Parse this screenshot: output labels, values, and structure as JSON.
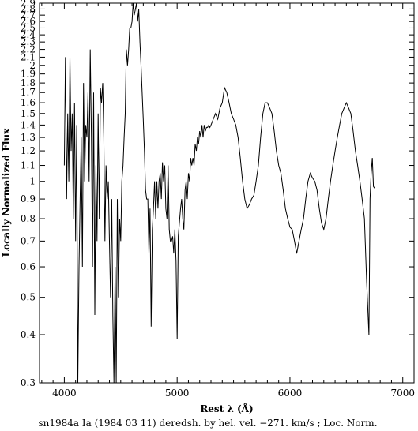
{
  "chart_data": {
    "type": "line",
    "xlabel": "Rest λ (Å)",
    "ylabel": "Locally Normalized Flux",
    "caption": "sn1984a Ia (1984 03 11) deredsh. by hel. vel.  −271. km/s ;  Loc. Norm.",
    "xlim": [
      3780,
      7100
    ],
    "ylim": [
      0.3,
      2.9
    ],
    "yscale": "log",
    "xticks": [
      4000,
      5000,
      6000,
      7000
    ],
    "yticks": [
      0.3,
      0.4,
      0.5,
      0.6,
      0.7,
      0.8,
      0.9,
      1,
      1.1,
      1.2,
      1.3,
      1.4,
      1.5,
      1.6,
      1.7,
      1.8,
      1.9,
      2,
      2.1,
      2.2,
      2.3,
      2.4,
      2.5,
      2.6,
      2.7,
      2.8,
      2.9
    ],
    "grid": false,
    "line_color": "#000000",
    "series": [
      {
        "x": [
          4000,
          4010,
          4020,
          4030,
          4040,
          4050,
          4060,
          4070,
          4080,
          4090,
          4100,
          4110,
          4120,
          4130,
          4140,
          4150,
          4160,
          4170,
          4180,
          4190,
          4200,
          4210,
          4220,
          4230,
          4240,
          4250,
          4260,
          4270,
          4280,
          4290,
          4300,
          4310,
          4320,
          4330,
          4340,
          4350,
          4360,
          4370,
          4380,
          4390,
          4400,
          4410,
          4420,
          4430,
          4440,
          4450,
          4460,
          4470,
          4480,
          4490,
          4500,
          4510,
          4520,
          4530,
          4540,
          4550,
          4560,
          4570,
          4580,
          4590,
          4600,
          4610,
          4620,
          4630,
          4640,
          4650,
          4660,
          4670,
          4680,
          4690,
          4700,
          4710,
          4720,
          4730,
          4740,
          4750,
          4760,
          4770,
          4780,
          4790,
          4800,
          4810,
          4820,
          4830,
          4840,
          4850,
          4860,
          4870,
          4880,
          4890,
          4900,
          4910,
          4920,
          4930,
          4940,
          4950,
          4960,
          4970,
          4980,
          4990,
          5000,
          5010,
          5020,
          5030,
          5040,
          5050,
          5060,
          5070,
          5080,
          5090,
          5100,
          5110,
          5120,
          5130,
          5140,
          5150,
          5160,
          5170,
          5180,
          5190,
          5200,
          5210,
          5220,
          5230,
          5240,
          5250,
          5260,
          5270,
          5280,
          5290,
          5300,
          5320,
          5340,
          5360,
          5380,
          5400,
          5420,
          5440,
          5460,
          5480,
          5500,
          5520,
          5540,
          5560,
          5580,
          5600,
          5620,
          5640,
          5660,
          5680,
          5700,
          5720,
          5740,
          5760,
          5780,
          5800,
          5820,
          5840,
          5860,
          5880,
          5900,
          5920,
          5940,
          5960,
          5980,
          6000,
          6020,
          6040,
          6060,
          6080,
          6100,
          6120,
          6140,
          6160,
          6180,
          6200,
          6220,
          6240,
          6260,
          6280,
          6300,
          6320,
          6340,
          6360,
          6380,
          6400,
          6420,
          6440,
          6460,
          6480,
          6500,
          6520,
          6540,
          6560,
          6580,
          6600,
          6620,
          6640,
          6660,
          6680,
          6700,
          6710,
          6720,
          6730,
          6740,
          6750
        ],
        "y": [
          1.1,
          2.1,
          0.9,
          1.5,
          1.0,
          2.1,
          1.2,
          1.5,
          0.8,
          1.6,
          0.7,
          1.4,
          0.3,
          0.6,
          0.9,
          1.3,
          0.6,
          1.8,
          1.0,
          1.4,
          1.3,
          1.7,
          1.0,
          2.2,
          1.3,
          0.6,
          1.7,
          0.45,
          1.1,
          0.7,
          1.5,
          0.8,
          1.75,
          1.6,
          1.8,
          1.3,
          0.7,
          1.1,
          0.9,
          1.0,
          0.7,
          0.5,
          0.9,
          0.45,
          0.3,
          0.6,
          0.3,
          0.9,
          0.5,
          0.8,
          0.7,
          1.0,
          1.1,
          1.3,
          1.5,
          2.2,
          2.0,
          2.2,
          2.5,
          2.5,
          2.6,
          2.9,
          2.7,
          2.8,
          2.9,
          2.6,
          2.8,
          2.3,
          2.0,
          1.7,
          1.45,
          1.2,
          0.95,
          0.9,
          0.9,
          0.65,
          0.85,
          0.42,
          0.75,
          0.85,
          1.0,
          0.8,
          1.0,
          0.85,
          1.0,
          1.05,
          0.9,
          1.12,
          1.0,
          1.1,
          0.85,
          0.8,
          1.1,
          0.75,
          0.7,
          0.7,
          0.72,
          0.65,
          0.75,
          0.62,
          0.39,
          0.72,
          0.78,
          0.85,
          0.9,
          0.8,
          0.75,
          0.95,
          1.0,
          0.9,
          1.05,
          1.0,
          1.15,
          1.1,
          1.15,
          1.1,
          1.25,
          1.2,
          1.3,
          1.25,
          1.35,
          1.3,
          1.4,
          1.3,
          1.4,
          1.35,
          1.38,
          1.38,
          1.4,
          1.38,
          1.4,
          1.45,
          1.5,
          1.45,
          1.55,
          1.6,
          1.75,
          1.7,
          1.6,
          1.5,
          1.45,
          1.4,
          1.3,
          1.15,
          1.0,
          0.9,
          0.85,
          0.87,
          0.9,
          0.92,
          1.0,
          1.1,
          1.3,
          1.5,
          1.6,
          1.6,
          1.55,
          1.5,
          1.35,
          1.2,
          1.1,
          1.05,
          0.95,
          0.85,
          0.8,
          0.76,
          0.75,
          0.7,
          0.65,
          0.7,
          0.75,
          0.8,
          0.9,
          1.0,
          1.05,
          1.02,
          1.0,
          0.95,
          0.85,
          0.78,
          0.75,
          0.8,
          0.9,
          1.0,
          1.1,
          1.2,
          1.3,
          1.4,
          1.5,
          1.55,
          1.6,
          1.55,
          1.5,
          1.35,
          1.2,
          1.1,
          1.0,
          0.9,
          0.8,
          0.55,
          0.4,
          0.9,
          1.05,
          1.15,
          0.97,
          0.96
        ]
      }
    ]
  }
}
